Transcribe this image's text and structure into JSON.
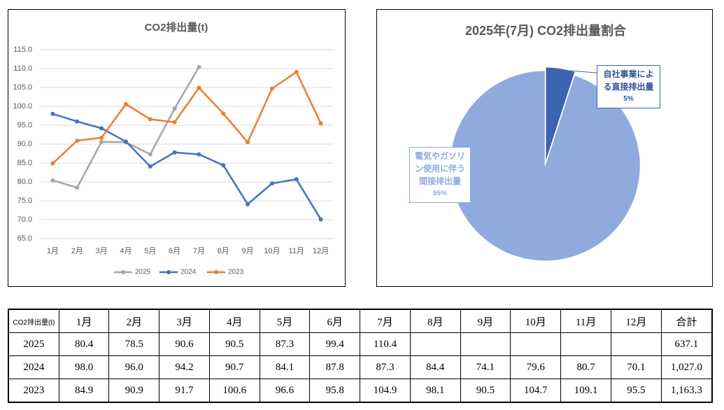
{
  "chart_data": [
    {
      "type": "line",
      "title": "CO2排出量(t)",
      "categories": [
        "1月",
        "2月",
        "3月",
        "4月",
        "5月",
        "6月",
        "7月",
        "8月",
        "9月",
        "10月",
        "11月",
        "12月"
      ],
      "series": [
        {
          "name": "2025",
          "color": "#a5a5a5",
          "values": [
            80.4,
            78.5,
            90.6,
            90.5,
            87.3,
            99.4,
            110.4,
            null,
            null,
            null,
            null,
            null
          ]
        },
        {
          "name": "2024",
          "color": "#4472c4",
          "values": [
            98.0,
            96.0,
            94.2,
            90.7,
            84.1,
            87.8,
            87.3,
            84.4,
            74.1,
            79.6,
            80.7,
            70.1
          ]
        },
        {
          "name": "2023",
          "color": "#ed7d31",
          "values": [
            84.9,
            90.9,
            91.7,
            100.6,
            96.6,
            95.8,
            104.9,
            98.1,
            90.5,
            104.7,
            109.1,
            95.5
          ]
        }
      ],
      "ylim": [
        65,
        115
      ],
      "yticks": [
        {
          "value": 65,
          "label": "65.0"
        },
        {
          "value": 70,
          "label": "70.0"
        },
        {
          "value": 75,
          "label": "75.0"
        },
        {
          "value": 80,
          "label": "80.0"
        },
        {
          "value": 85,
          "label": "85.0"
        },
        {
          "value": 90,
          "label": "90.0"
        },
        {
          "value": 95,
          "label": "95.0"
        },
        {
          "value": 100,
          "label": "100.0"
        },
        {
          "value": 105,
          "label": "105.0"
        },
        {
          "value": 110,
          "label": "110.0"
        },
        {
          "value": 115,
          "label": "115.0"
        }
      ],
      "grid": true,
      "legend": "bottom"
    },
    {
      "type": "pie",
      "title": "2025年(7月) CO2排出量割合",
      "categories": [
        "自社事業による直接排出量",
        "電気やガソリン使用に伴う間接排出量"
      ],
      "values": [
        5,
        95
      ],
      "value_labels": [
        "5%",
        "95%"
      ],
      "colors": [
        "#3c63b0",
        "#8faadc"
      ]
    }
  ],
  "table": {
    "header": [
      "CO2排出量(t)",
      "1月",
      "2月",
      "3月",
      "4月",
      "5月",
      "6月",
      "7月",
      "8月",
      "9月",
      "10月",
      "11月",
      "12月",
      "合計"
    ],
    "rows": [
      [
        "2025",
        "80.4",
        "78.5",
        "90.6",
        "90.5",
        "87.3",
        "99.4",
        "110.4",
        null,
        null,
        null,
        null,
        null,
        "637.1"
      ],
      [
        "2024",
        "98.0",
        "96.0",
        "94.2",
        "90.7",
        "84.1",
        "87.8",
        "87.3",
        "84.4",
        "74.1",
        "79.6",
        "80.7",
        "70.1",
        "1,027.0"
      ],
      [
        "2023",
        "84.9",
        "90.9",
        "91.7",
        "100.6",
        "96.6",
        "95.8",
        "104.9",
        "98.1",
        "90.5",
        "104.7",
        "109.1",
        "95.5",
        "1,163.3"
      ]
    ]
  }
}
